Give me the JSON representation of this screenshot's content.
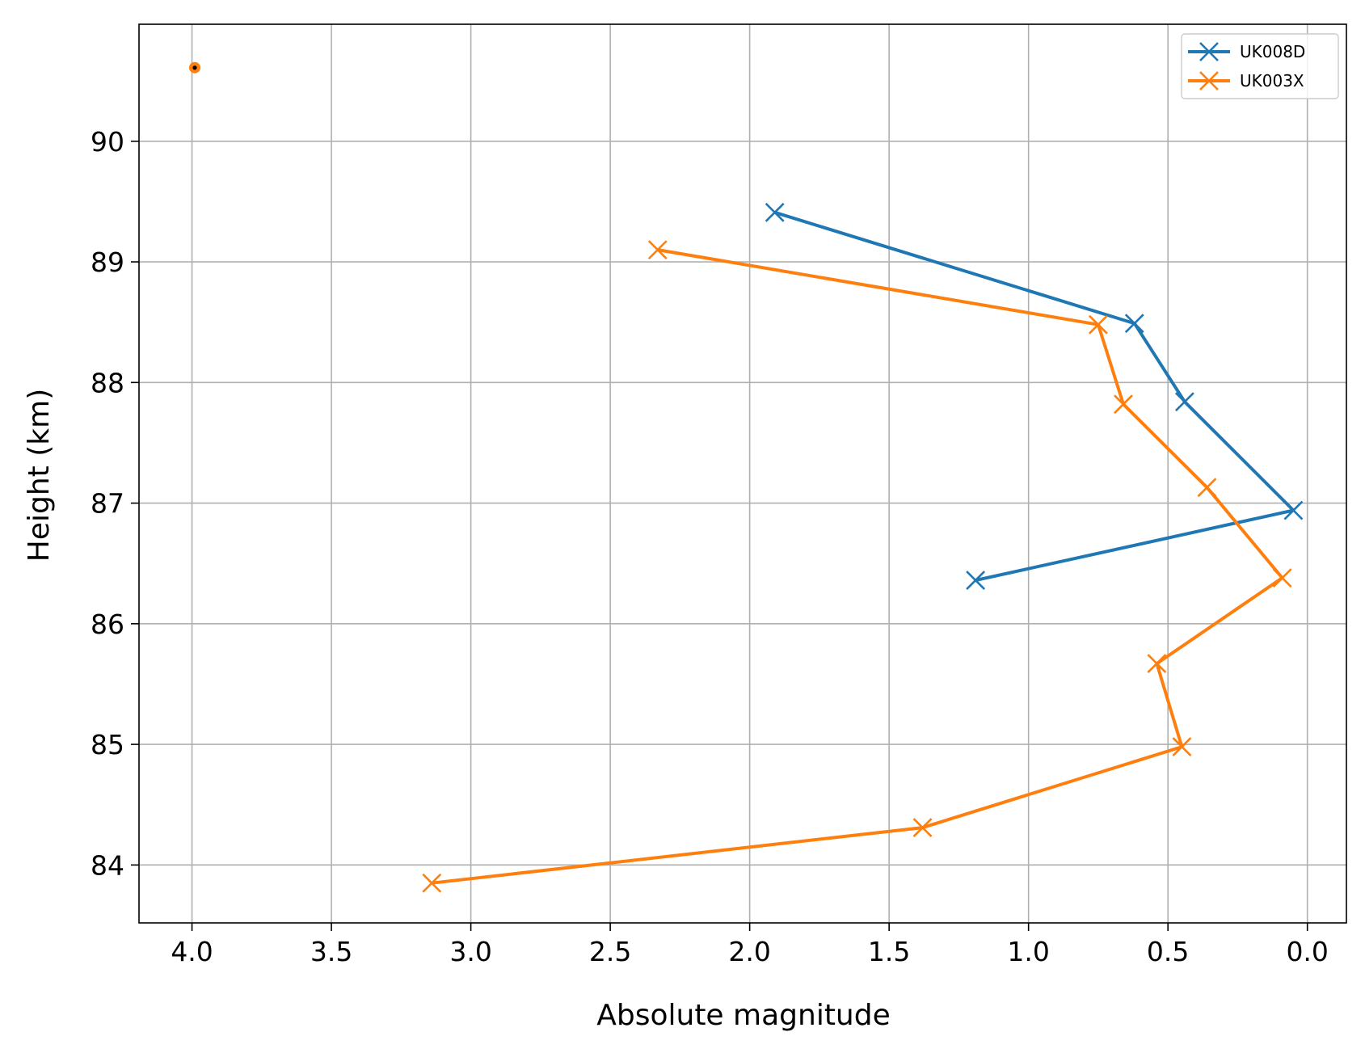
{
  "chart_data": {
    "type": "line",
    "title": "",
    "xlabel": "Absolute magnitude",
    "ylabel": "Height (km)",
    "x_inverted": true,
    "xlim": [
      4.19,
      -0.14
    ],
    "ylim": [
      83.52,
      90.97
    ],
    "xticks": [
      4.0,
      3.5,
      3.0,
      2.5,
      2.0,
      1.5,
      1.0,
      0.5,
      0.0
    ],
    "xtick_labels": [
      "4.0",
      "3.5",
      "3.0",
      "2.5",
      "2.0",
      "1.5",
      "1.0",
      "0.5",
      "0.0"
    ],
    "yticks": [
      84,
      85,
      86,
      87,
      88,
      89,
      90
    ],
    "ytick_labels": [
      "84",
      "85",
      "86",
      "87",
      "88",
      "89",
      "90"
    ],
    "grid": true,
    "legend": "top-right",
    "series": [
      {
        "name": "UK008D",
        "color": "#1f77b4",
        "marker": "x",
        "x": [
          1.91,
          0.62,
          0.44,
          0.05,
          1.19
        ],
        "y": [
          89.41,
          88.49,
          87.84,
          86.94,
          86.36
        ]
      },
      {
        "name": "UK003X",
        "color": "#ff7f0e",
        "marker": "x",
        "x": [
          2.33,
          0.75,
          0.66,
          0.36,
          0.09,
          0.54,
          0.45,
          1.38,
          3.14
        ],
        "y": [
          89.1,
          88.48,
          87.82,
          87.13,
          86.38,
          85.67,
          84.98,
          84.31,
          83.85
        ]
      }
    ],
    "annotations": [
      {
        "kind": "point",
        "x": 3.99,
        "y": 90.61,
        "color": "#ff7f0e",
        "inner_color": "#000000"
      }
    ]
  }
}
